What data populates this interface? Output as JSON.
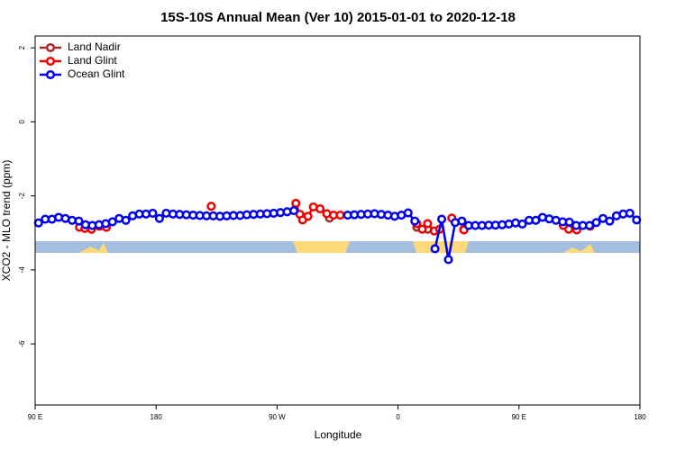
{
  "chart_data": {
    "type": "line",
    "title": "15S-10S Annual Mean (Ver 10)   2015-01-01 to 2020-12-18",
    "x_label": "Longitude",
    "y_label": "XCO2 - MLO trend (ppm)",
    "xlim": [
      90,
      540
    ],
    "xticks": [
      {
        "value": 90,
        "label": "90 E"
      },
      180,
      {
        "value": 270,
        "label": "90 W"
      },
      {
        "value": 360,
        "label": "0"
      },
      {
        "value": 450,
        "label": "90 E"
      },
      {
        "value": 540,
        "label": "180"
      }
    ],
    "ylim": [
      -7.65,
      2.32
    ],
    "yticks": [
      -6,
      -4,
      -2,
      0,
      2
    ],
    "legend": "top-left",
    "series": [
      {
        "name": "Land Nadir",
        "color": "#a52a2a",
        "x": [
          309,
          340,
          374,
          382,
          395,
          409
        ],
        "values": [
          -2.6,
          null,
          -2.85,
          -2.9,
          null,
          -2.9
        ]
      },
      {
        "name": "Land Glint",
        "color": "#ee0000",
        "x": [
          123,
          127,
          132,
          138,
          143,
          180,
          221,
          250,
          284,
          287,
          289,
          293,
          297,
          302,
          307,
          312,
          317,
          340,
          374,
          378,
          382,
          387,
          391,
          395,
          400,
          405,
          409,
          440,
          483,
          487,
          493,
          503
        ],
        "values": [
          -2.85,
          -2.88,
          -2.9,
          -2.82,
          -2.85,
          null,
          -2.28,
          null,
          -2.2,
          -2.5,
          -2.65,
          -2.55,
          -2.3,
          -2.35,
          -2.48,
          -2.52,
          -2.52,
          null,
          -2.75,
          -2.9,
          -2.75,
          -2.95,
          -2.9,
          null,
          -2.6,
          null,
          -2.92,
          null,
          -2.8,
          -2.9,
          -2.92,
          -2.82
        ]
      },
      {
        "name": "Ocean Glint",
        "color": "#0000ee",
        "x": [
          92.5,
          97.5,
          102.5,
          107.5,
          112.5,
          117.5,
          122.5,
          127.5,
          132.5,
          137.5,
          142.5,
          147.5,
          152.5,
          157.5,
          162.5,
          167.5,
          172.5,
          177.5,
          182.5,
          187.5,
          192.5,
          197.5,
          202.5,
          207.5,
          212.5,
          217.5,
          222.5,
          227.5,
          232.5,
          237.5,
          242.5,
          247.5,
          252.5,
          257.5,
          262.5,
          267.5,
          272.5,
          277.5,
          282.5,
          302.5,
          322.5,
          327.5,
          332.5,
          337.5,
          342.5,
          347.5,
          352.5,
          357.5,
          362.5,
          367.5,
          372.5,
          380,
          387.5,
          392.5,
          397.5,
          402.5,
          407.5,
          412.5,
          417.5,
          422.5,
          427.5,
          432.5,
          437.5,
          442.5,
          447.5,
          452.5,
          457.5,
          462.5,
          467.5,
          472.5,
          477.5,
          482.5,
          487.5,
          492.5,
          497.5,
          502.5,
          507.5,
          512.5,
          517.5,
          522.5,
          527.5,
          532.5,
          537.5
        ],
        "values": [
          -2.73,
          -2.63,
          -2.63,
          -2.58,
          -2.61,
          -2.66,
          -2.68,
          -2.78,
          -2.8,
          -2.78,
          -2.75,
          -2.7,
          -2.61,
          -2.66,
          -2.54,
          -2.49,
          -2.49,
          -2.47,
          -2.61,
          -2.47,
          -2.49,
          -2.5,
          -2.51,
          -2.52,
          -2.53,
          -2.54,
          -2.54,
          -2.55,
          -2.54,
          -2.53,
          -2.53,
          -2.51,
          -2.5,
          -2.49,
          -2.48,
          -2.47,
          -2.45,
          -2.43,
          -2.4,
          null,
          -2.52,
          -2.51,
          -2.5,
          -2.49,
          -2.48,
          -2.5,
          -2.52,
          -2.55,
          -2.52,
          -2.46,
          -2.68,
          null,
          -3.43,
          -2.63,
          -3.72,
          -2.72,
          -2.68,
          -2.8,
          -2.8,
          -2.8,
          -2.79,
          -2.79,
          -2.78,
          -2.76,
          -2.73,
          -2.76,
          -2.66,
          -2.66,
          -2.58,
          -2.62,
          -2.66,
          -2.7,
          -2.71,
          -2.8,
          -2.8,
          -2.8,
          -2.72,
          -2.61,
          -2.68,
          -2.54,
          -2.49,
          -2.47,
          -2.65
        ]
      }
    ]
  }
}
